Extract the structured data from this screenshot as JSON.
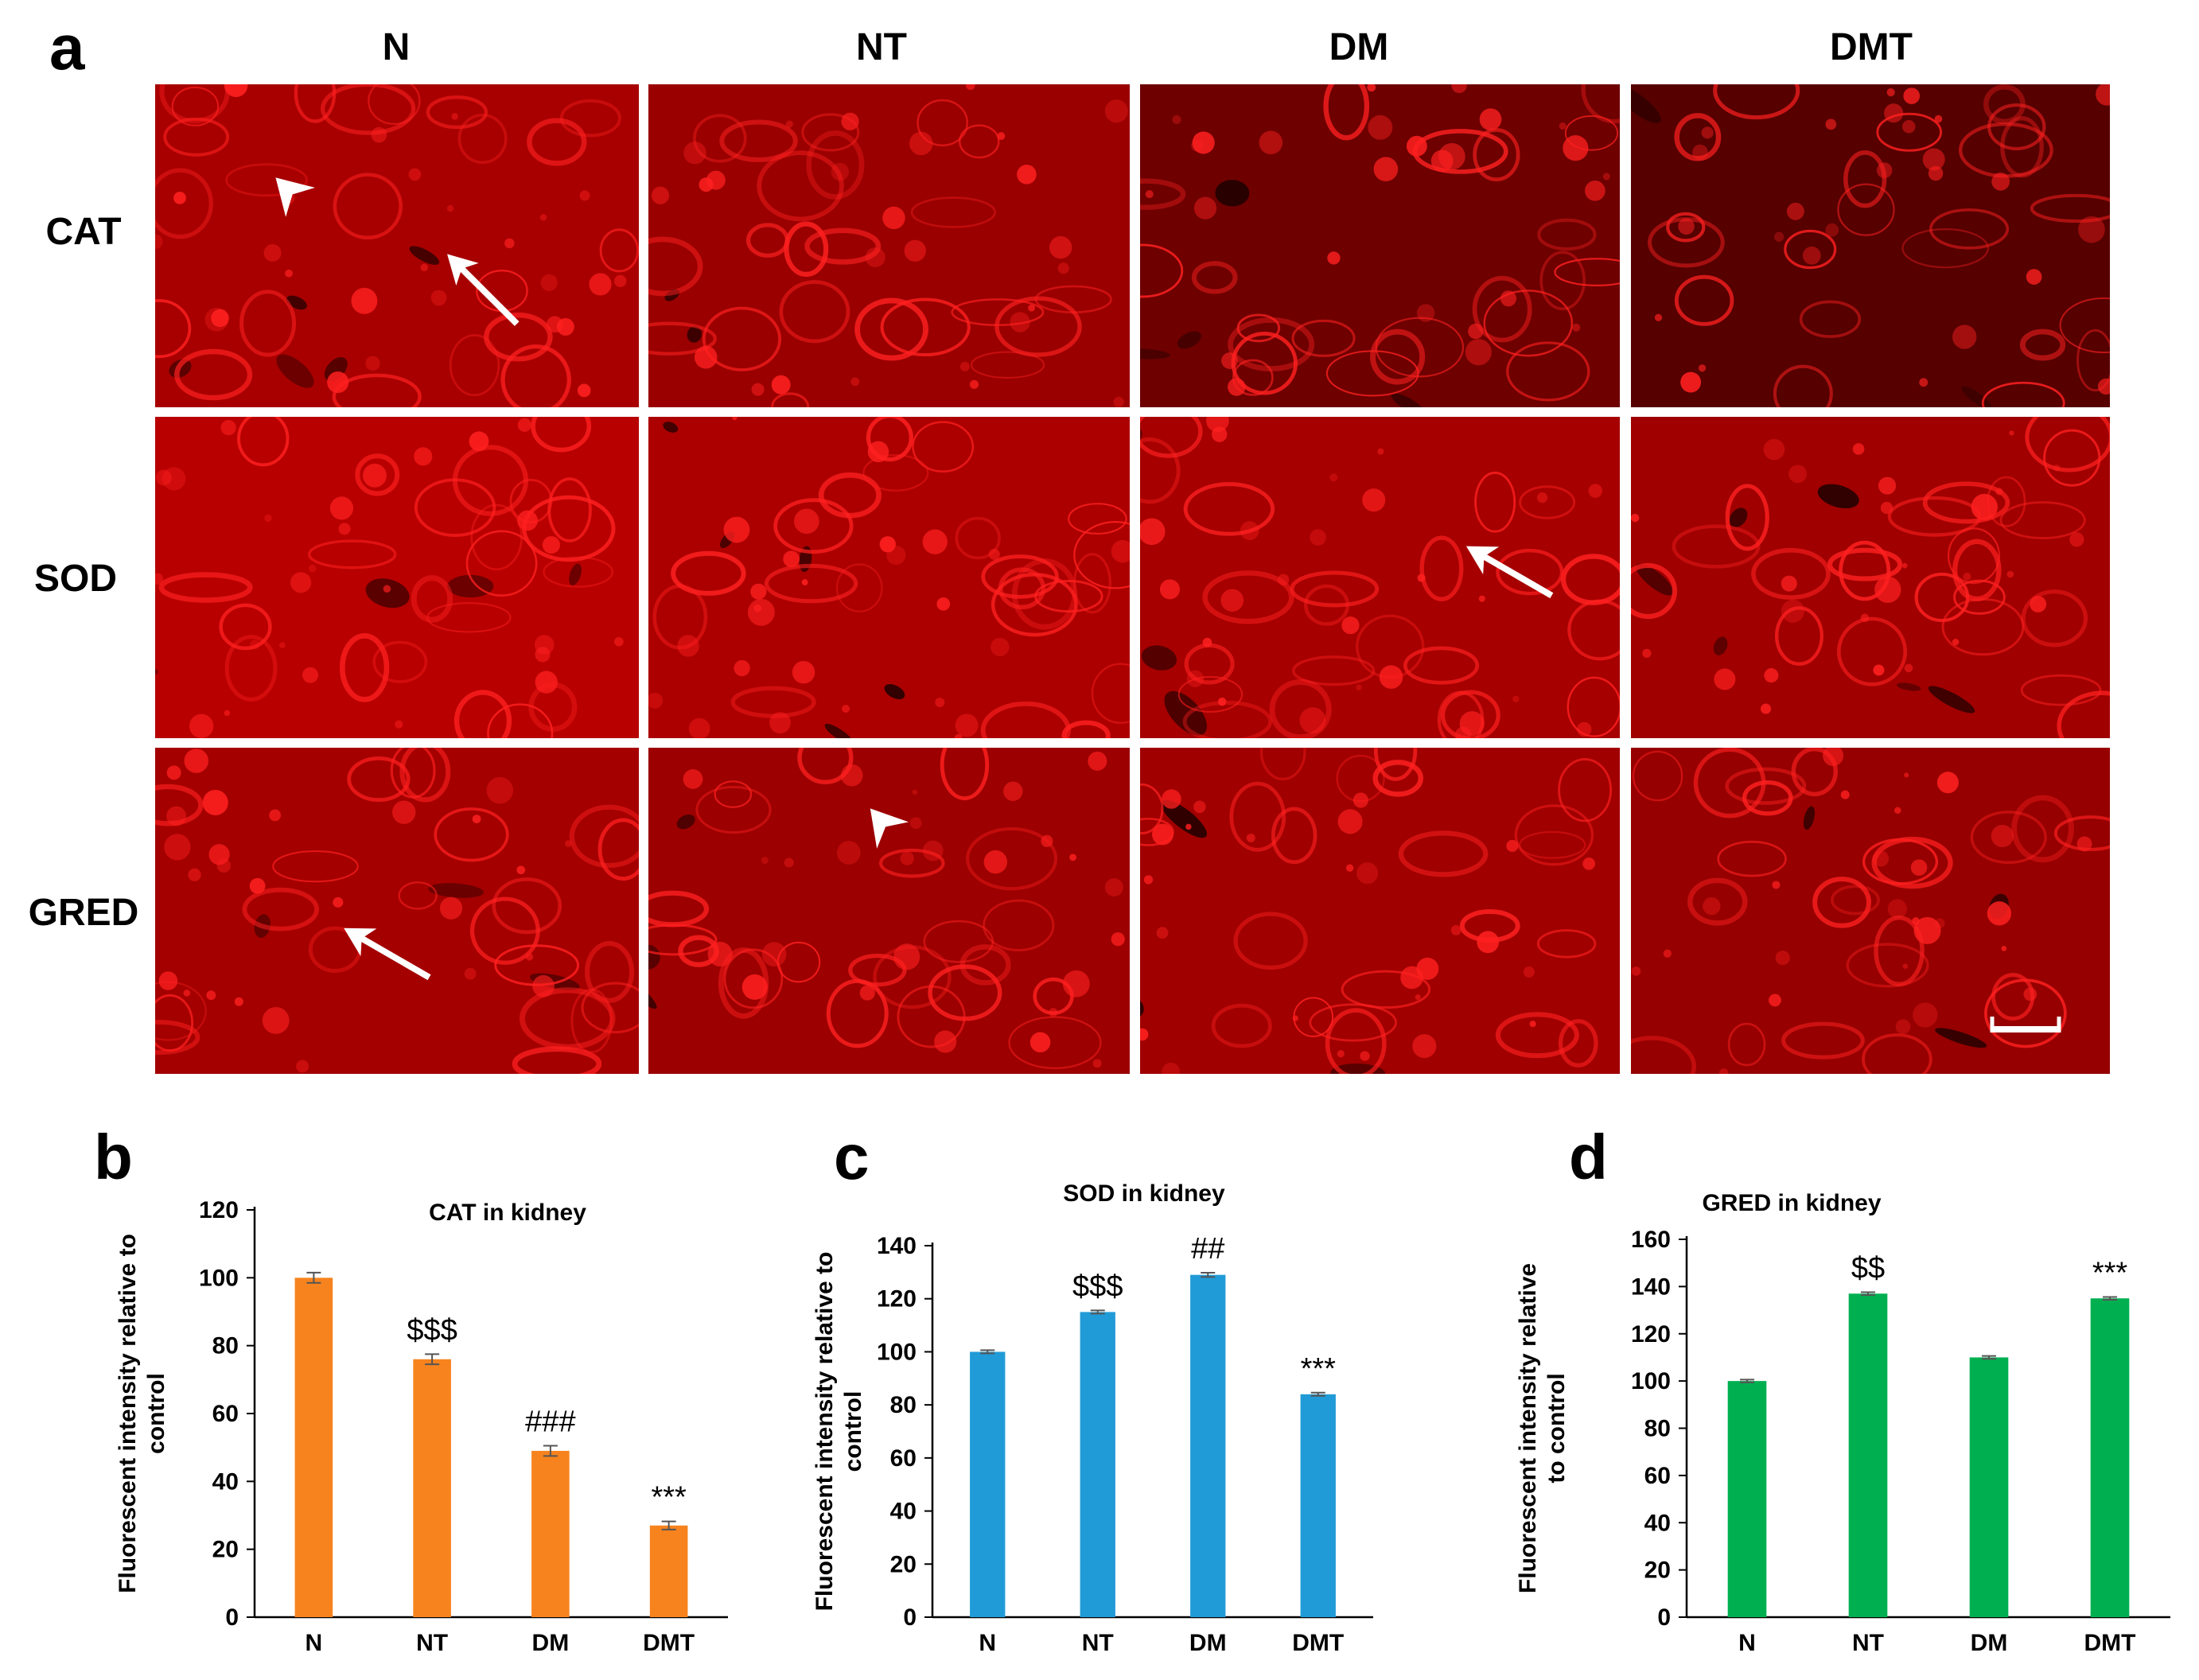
{
  "panel_a": {
    "letter": "a",
    "columns": [
      "N",
      "NT",
      "DM",
      "DMT"
    ],
    "rows": [
      "CAT",
      "SOD",
      "GRED"
    ],
    "tile_base_colors": {
      "CAT": [
        "#a80000",
        "#9a0000",
        "#6e0000",
        "#560000"
      ],
      "SOD": [
        "#b80000",
        "#ac0000",
        "#a60000",
        "#a00000"
      ],
      "GRED": [
        "#a40000",
        "#9c0000",
        "#a00000",
        "#960000"
      ]
    },
    "highlight_color": "#ff2020",
    "arrow_color": "#ffffff"
  },
  "chart_data": [
    {
      "panel": "b",
      "type": "bar",
      "title": "CAT in kidney",
      "ylabel": "Fluorescent intensity relative to control",
      "xlabel": "",
      "categories": [
        "N",
        "NT",
        "DM",
        "DMT"
      ],
      "values": [
        100,
        76,
        49,
        27
      ],
      "errors": [
        1.5,
        1.5,
        1.5,
        1.2
      ],
      "annotations": [
        "",
        "$$$",
        "###",
        "***"
      ],
      "ylim": [
        0,
        120
      ],
      "yticks": [
        0,
        20,
        40,
        60,
        80,
        100,
        120
      ],
      "color": "#f7831e",
      "grid": false
    },
    {
      "panel": "c",
      "type": "bar",
      "title": "SOD in kidney",
      "ylabel": "Fluorescent intensity relative to control",
      "xlabel": "",
      "categories": [
        "N",
        "NT",
        "DM",
        "DMT"
      ],
      "values": [
        100,
        115,
        129,
        84
      ],
      "errors": [
        0.6,
        0.6,
        0.8,
        0.6
      ],
      "annotations": [
        "",
        "$$$",
        "##",
        "***"
      ],
      "ylim": [
        0,
        140
      ],
      "yticks": [
        0,
        20,
        40,
        60,
        80,
        100,
        120,
        140
      ],
      "color": "#219bd7",
      "grid": false
    },
    {
      "panel": "d",
      "type": "bar",
      "title": "GRED in kidney",
      "ylabel": "Fluorescent intensity relative to control",
      "xlabel": "",
      "categories": [
        "N",
        "NT",
        "DM",
        "DMT"
      ],
      "values": [
        100,
        137,
        110,
        135
      ],
      "errors": [
        0.6,
        0.6,
        0.6,
        0.6
      ],
      "annotations": [
        "",
        "$$",
        "",
        "***"
      ],
      "ylim": [
        0,
        160
      ],
      "yticks": [
        0,
        20,
        40,
        60,
        80,
        100,
        120,
        140,
        160
      ],
      "color": "#00b050",
      "grid": false
    }
  ]
}
